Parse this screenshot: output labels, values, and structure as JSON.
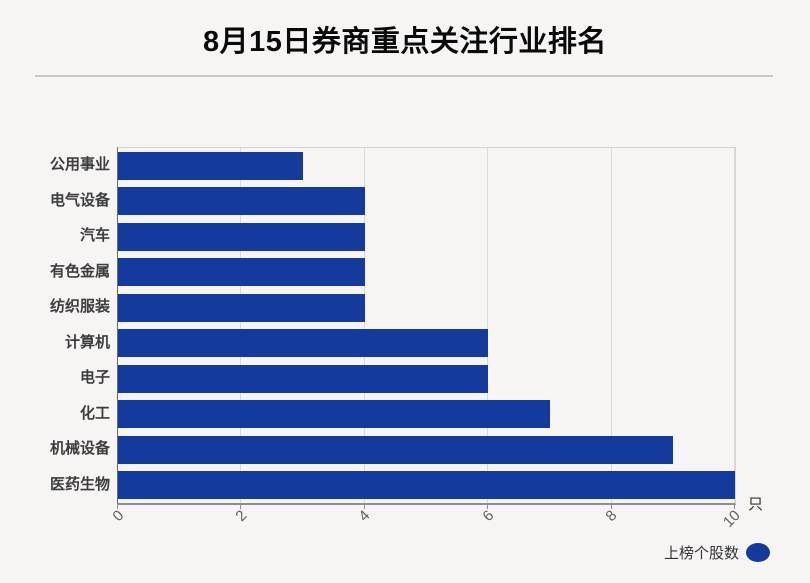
{
  "page": {
    "background_color": "#f7f4f4"
  },
  "header": {
    "title": "8月15日券商重点关注行业排名"
  },
  "chart_data": {
    "type": "bar",
    "orientation": "horizontal",
    "title": "8月15日券商重点关注行业排名",
    "categories": [
      "公用事业",
      "电气设备",
      "汽车",
      "有色金属",
      "纺织服装",
      "计算机",
      "电子",
      "化工",
      "机械设备",
      "医药生物"
    ],
    "series": [
      {
        "name": "上榜个股数",
        "values": [
          3,
          4,
          4,
          4,
          4,
          6,
          6,
          7,
          9,
          10
        ]
      }
    ],
    "xlabel": "只",
    "ylabel": "",
    "x_ticks": [
      0,
      2,
      4,
      6,
      8,
      10
    ],
    "xlim": [
      0,
      10
    ],
    "grid": true,
    "legend_position": "bottom-right",
    "bar_color": "#143a9e"
  },
  "legend": {
    "label": "上榜个股数",
    "marker_color": "#143a9e"
  }
}
